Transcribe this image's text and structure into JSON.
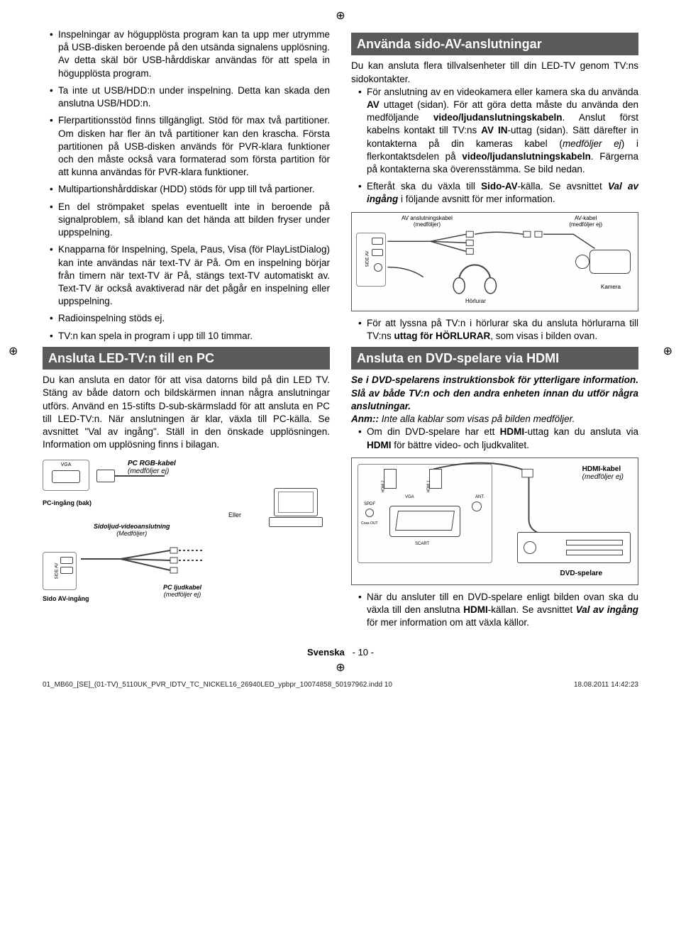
{
  "left": {
    "bullets1": [
      "Inspelningar av högupplösta program kan ta upp mer utrymme på USB-disken beroende på den utsända signalens upplösning. Av detta skäl bör USB-hårddiskar användas för att spela in högupplösta program.",
      "Ta inte ut USB/HDD:n under inspelning. Detta kan skada den anslutna USB/HDD:n.",
      "Flerpartitionsstöd finns tillgängligt. Stöd för max två partitioner. Om disken har fler än två partitioner kan den krascha. Första partitionen på USB-disken används för PVR-klara funktioner och den måste också vara formaterad som första partition för att kunna användas för PVR-klara funktioner.",
      "Multipartionshårddiskar (HDD) stöds för upp till två partioner.",
      "En del strömpaket spelas eventuellt inte in beroende på signalproblem, så ibland kan det hända att bilden fryser under uppspelning.",
      "Knapparna för Inspelning, Spela, Paus, Visa (för PlayListDialog) kan inte användas när text-TV är På. Om en inspelning börjar från timern när text-TV är På, stängs text-TV automatiskt av. Text-TV är också avaktiverad när det pågår en inspelning eller uppspelning.",
      "Radioinspelning stöds ej.",
      "TV:n kan spela in program i upp till 10 timmar."
    ],
    "header1": "Ansluta LED-TV:n till en PC",
    "para1": "Du kan ansluta en dator för att visa datorns bild på din LED TV. Stäng av både datorn och bildskärmen innan några anslutningar utförs. Använd en 15-stifts D-sub-skärmsladd för att ansluta en PC till LED-TV:n. När anslutningen är klar, växla till PC-källa. Se avsnittet \"Val av ingång\". Ställ in den önskade upplösningen. Information om upplösning finns i bilagan.",
    "diagram_pc": {
      "vga": "VGA",
      "cable1": "PC RGB-kabel",
      "cable1_sub": "(medföljer ej)",
      "pc_in": "PC-ingång (bak)",
      "or": "Eller",
      "side_av_cable": "Sidoljud-videoanslutning",
      "side_av_cable_sub": "(Medföljer)",
      "side_av": "SIDE AV",
      "side_av_in": "Sido AV-ingång",
      "audio_cable": "PC ljudkabel",
      "audio_cable_sub": "(medföljer ej)"
    }
  },
  "right": {
    "header1": "Använda sido-AV-anslutningar",
    "para1": "Du kan ansluta flera tillvalsenheter till din LED-TV genom TV:ns sidokontakter.",
    "bullets1": [
      "För anslutning av en videokamera eller kamera ska du använda <b>AV</b> uttaget (sidan). För att göra detta måste du använda den medföljande <b>video/ljudanslutningskabeln</b>. Anslut först kabelns kontakt till TV:ns <b>AV IN</b>-uttag (sidan). Sätt därefter in kontakterna på din kameras kabel (<i>medföljer ej</i>) i flerkontaktsdelen på <b>video/ljudanslutningskabeln</b>. Färgerna på kontakterna ska överensstämma. Se bild nedan.",
      "Efteråt ska du växla till <b>Sido-AV</b>-källa. Se avsnittet <b><i>Val av ingång</i></b> i följande avsnitt för mer information."
    ],
    "diagram_av": {
      "side_av": "SIDE AV",
      "av_conn": "AV anslutningskabel",
      "av_conn_sub": "(medföljer)",
      "av_cable": "AV-kabel",
      "av_cable_sub": "(medföljer ej)",
      "headphones": "Hörlurar",
      "camera": "Kamera"
    },
    "bullets2": [
      "För att lyssna på TV:n i hörlurar ska du ansluta hörlurarna till TV:ns <b>uttag för HÖRLURAR</b>, som visas i bilden ovan."
    ],
    "header2": "Ansluta en DVD-spelare via HDMI",
    "para2_italic": "Se i DVD-spelarens instruktionsbok för ytterligare information. Slå av både TV:n och den andra enheten innan du utför några anslutningar.",
    "para2_note_label": "Anm::",
    "para2_note": " Inte alla kablar som visas på bilden medföljer.",
    "bullets3": [
      "Om din DVD-spelare har ett <b>HDMI</b>-uttag kan du ansluta via <b>HDMI</b> för bättre video- och ljudkvalitet."
    ],
    "diagram_hdmi": {
      "hdmi2": "HDMI 2",
      "hdmi1": "HDMI 1",
      "vga": "VGA",
      "ant": "ANT.",
      "spdf": "SPDF",
      "coax": "Coax.OUT",
      "scart": "SCART",
      "hdmi_cable": "HDMI-kabel",
      "hdmi_cable_sub": "(medföljer ej)",
      "dvd": "DVD-spelare"
    },
    "bullets4": [
      "När du ansluter till en DVD-spelare enligt bilden ovan ska du växla till den anslutna <b>HDMI</b>-källan. Se avsnittet <b><i>Val av ingång</i></b> för mer information om att växla källor."
    ]
  },
  "footer": {
    "lang": "Svenska",
    "page": "- 10 -",
    "file": "01_MB60_[SE]_(01-TV)_5110UK_PVR_IDTV_TC_NICKEL16_26940LED_ypbpr_10074858_50197962.indd   10",
    "date": "18.08.2011   14:42:23"
  }
}
